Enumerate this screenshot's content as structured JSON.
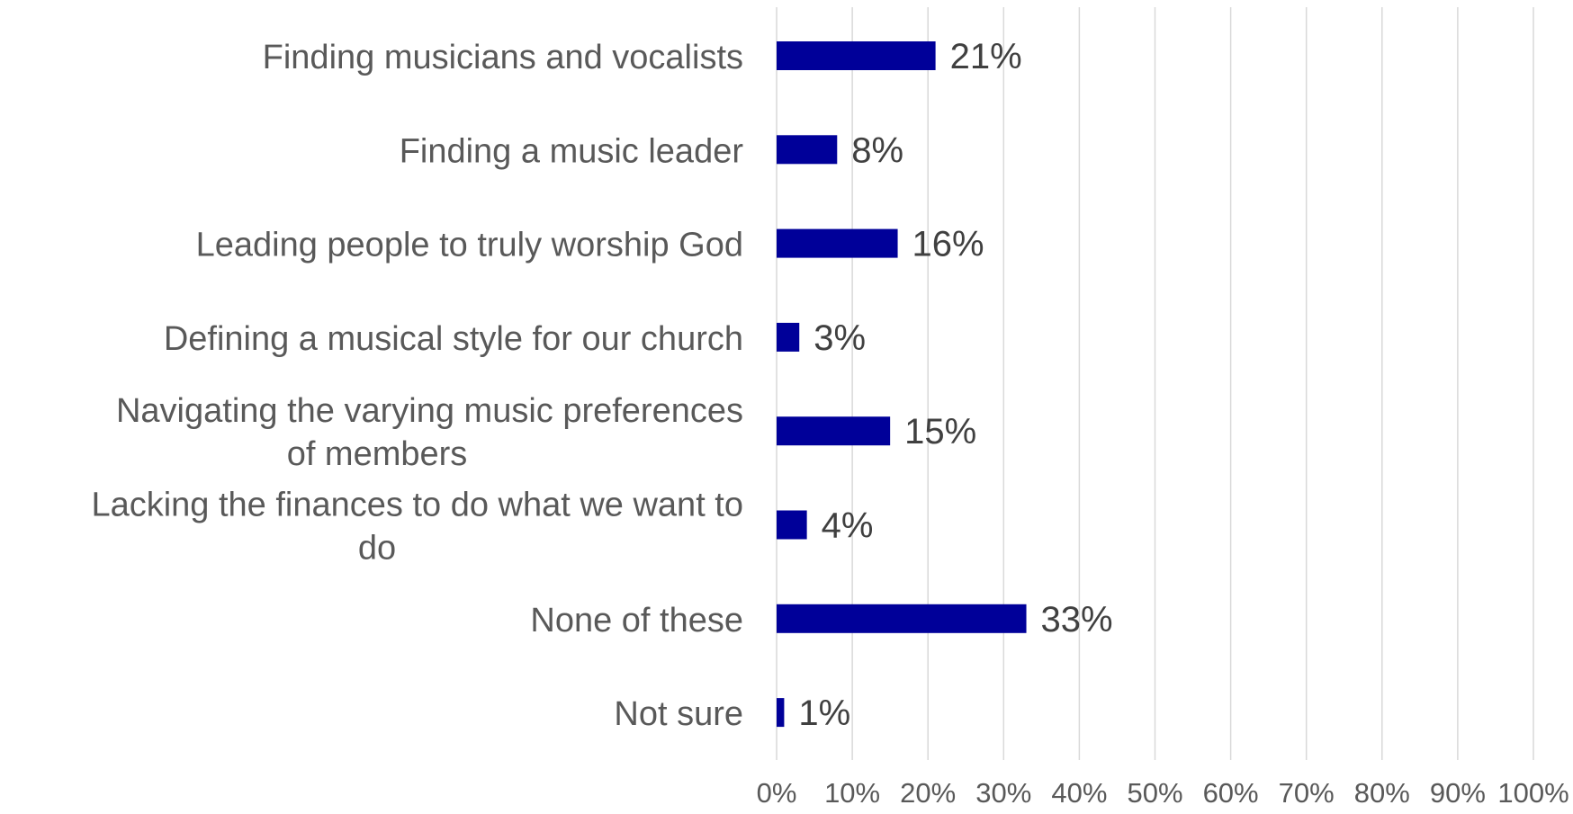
{
  "chart_data": {
    "type": "bar",
    "orientation": "horizontal",
    "title": "",
    "xlabel": "",
    "ylabel": "",
    "categories": [
      [
        "Finding musicians and vocalists"
      ],
      [
        "Finding a music leader"
      ],
      [
        "Leading people to truly worship God"
      ],
      [
        "Defining a musical style for our church"
      ],
      [
        "Navigating the varying music preferences",
        "of members"
      ],
      [
        "Lacking the finances to do what we want to",
        "do"
      ],
      [
        "None of these"
      ],
      [
        "Not sure"
      ]
    ],
    "values": [
      21,
      8,
      16,
      3,
      15,
      4,
      33,
      1
    ],
    "value_labels": [
      "21%",
      "8%",
      "16%",
      "3%",
      "15%",
      "4%",
      "33%",
      "1%"
    ],
    "xlim": [
      0,
      100
    ],
    "x_ticks": [
      0,
      10,
      20,
      30,
      40,
      50,
      60,
      70,
      80,
      90,
      100
    ],
    "x_tick_labels": [
      "0%",
      "10%",
      "20%",
      "30%",
      "40%",
      "50%",
      "60%",
      "70%",
      "80%",
      "90%",
      "100%"
    ],
    "grid": true,
    "legend": "none",
    "colors": {
      "bar": "#000099",
      "grid": "#d9d9d9",
      "category_text": "#595959",
      "value_text": "#404040",
      "tick_text": "#595959"
    }
  }
}
